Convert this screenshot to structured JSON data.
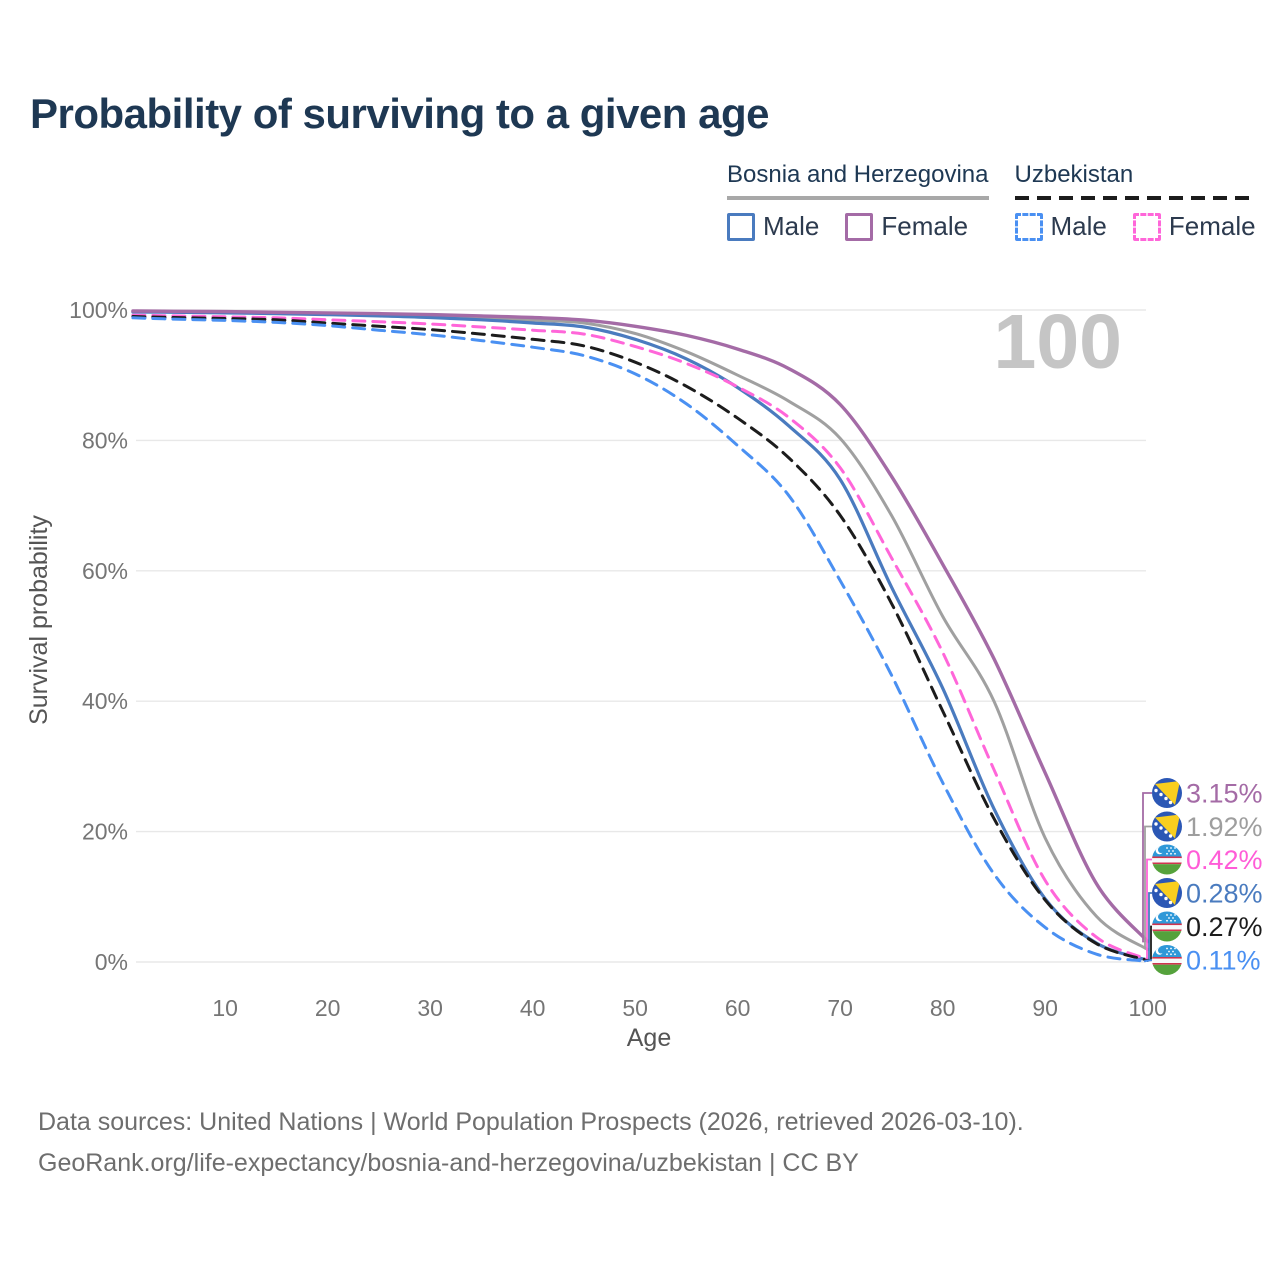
{
  "page": {
    "title": "Probability of surviving to a given age"
  },
  "colors": {
    "title": "#1e3853",
    "axis_text": "#757575",
    "axis_title": "#555555",
    "grid": "#e8e8e8",
    "watermark": "#c5c5c5",
    "footer": "#6e6e6e"
  },
  "legend": {
    "groups": [
      {
        "label": "Bosnia and Herzegovina",
        "line_style": "solid",
        "line_color": "#a8a8a8",
        "items": [
          {
            "label": "Male",
            "color": "#4a7bbf",
            "dashed": false
          },
          {
            "label": "Female",
            "color": "#a46ba6",
            "dashed": false
          }
        ]
      },
      {
        "label": "Uzbekistan",
        "line_style": "dashed",
        "line_color": "#1c1c1c",
        "items": [
          {
            "label": "Male",
            "color": "#4a90f2",
            "dashed": true
          },
          {
            "label": "Female",
            "color": "#ff66d9",
            "dashed": true
          }
        ]
      }
    ]
  },
  "chart_data": {
    "type": "line",
    "title": "Probability of surviving to a given age",
    "xlabel": "Age",
    "ylabel": "Survival probability",
    "xlim": [
      1,
      100
    ],
    "ylim": [
      0,
      100
    ],
    "grid": "horizontal",
    "x_ticks": [
      10,
      20,
      30,
      40,
      50,
      60,
      70,
      80,
      90,
      100
    ],
    "y_ticks": [
      "0%",
      "20%",
      "40%",
      "60%",
      "80%",
      "100%"
    ],
    "watermark": "100",
    "legend_position": "top-right",
    "ages": [
      1,
      5,
      10,
      15,
      20,
      25,
      30,
      35,
      40,
      45,
      50,
      55,
      60,
      65,
      70,
      75,
      80,
      85,
      90,
      95,
      100
    ],
    "series": [
      {
        "id": "ba-all",
        "country": "Bosnia and Herzegovina",
        "group": "All",
        "color": "#a0a0a0",
        "dashed": false,
        "width": 3,
        "flag": "ba",
        "end_label": "1.92%",
        "end_value": 1.92,
        "end_label_color": "#9e9e9e",
        "values": [
          99.75,
          99.7,
          99.6,
          99.5,
          99.4,
          99.25,
          99.05,
          98.8,
          98.45,
          98.0,
          96.4,
          93.6,
          90.0,
          86.0,
          80.3,
          68.5,
          53.0,
          40.0,
          19.0,
          7.0,
          1.92
        ]
      },
      {
        "id": "ba-male",
        "country": "Bosnia and Herzegovina",
        "group": "Male",
        "color": "#4a7bbf",
        "dashed": false,
        "width": 3.2,
        "flag": "ba",
        "end_label": "0.28%",
        "end_value": 0.28,
        "end_label_color": "#4a7bbf",
        "values": [
          99.7,
          99.65,
          99.55,
          99.45,
          99.3,
          99.1,
          98.85,
          98.5,
          98.0,
          97.4,
          95.5,
          92.5,
          88.1,
          82.2,
          74.0,
          57.5,
          42.0,
          23.5,
          9.7,
          2.9,
          0.28
        ]
      },
      {
        "id": "ba-female",
        "country": "Bosnia and Herzegovina",
        "group": "Female",
        "color": "#a46ba6",
        "dashed": false,
        "width": 3.4,
        "flag": "ba",
        "end_label": "3.15%",
        "end_value": 3.15,
        "end_label_color": "#a46ba6",
        "values": [
          99.85,
          99.8,
          99.75,
          99.65,
          99.55,
          99.45,
          99.3,
          99.1,
          98.85,
          98.45,
          97.5,
          96.1,
          94.0,
          91.0,
          85.5,
          74.5,
          61.0,
          46.5,
          29.0,
          12.0,
          3.15
        ]
      },
      {
        "id": "uz-female",
        "country": "Uzbekistan",
        "group": "Female",
        "color": "#ff66d9",
        "dashed": true,
        "width": 3,
        "flag": "uz",
        "end_label": "0.42%",
        "end_value": 0.42,
        "end_label_color": "#ff5cd7",
        "values": [
          99.2,
          99.1,
          98.95,
          98.8,
          98.5,
          98.2,
          97.85,
          97.4,
          96.9,
          96.3,
          94.4,
          91.8,
          88.2,
          83.5,
          75.8,
          62.0,
          47.5,
          29.5,
          12.5,
          3.8,
          0.42
        ]
      },
      {
        "id": "uz-all",
        "country": "Uzbekistan",
        "group": "All",
        "color": "#1c1c1c",
        "dashed": true,
        "width": 3,
        "flag": "uz",
        "end_label": "0.27%",
        "end_value": 0.27,
        "end_label_color": "#1c1c1c",
        "values": [
          99.0,
          98.85,
          98.7,
          98.5,
          98.0,
          97.5,
          97.0,
          96.3,
          95.5,
          94.5,
          92.0,
          88.3,
          83.4,
          77.3,
          68.5,
          55.0,
          38.5,
          22.0,
          9.5,
          2.8,
          0.27
        ]
      },
      {
        "id": "uz-male",
        "country": "Uzbekistan",
        "group": "Male",
        "color": "#4a90f2",
        "dashed": true,
        "width": 3,
        "flag": "uz",
        "end_label": "0.11%",
        "end_value": 0.11,
        "end_label_color": "#4a90f2",
        "values": [
          98.8,
          98.6,
          98.4,
          98.1,
          97.6,
          96.9,
          96.2,
          95.3,
          94.3,
          93.0,
          90.2,
          85.6,
          79.2,
          71.5,
          58.5,
          44.0,
          27.5,
          13.5,
          5.3,
          1.2,
          0.11
        ]
      }
    ],
    "end_rows": [
      "ba-female",
      "ba-all",
      "uz-female",
      "ba-male",
      "uz-all",
      "uz-male"
    ]
  },
  "footer": {
    "line1": "Data sources: United Nations | World Population Prospects (2026, retrieved 2026-03-10).",
    "line2": "GeoRank.org/life-expectancy/bosnia-and-herzegovina/uzbekistan | CC BY"
  }
}
